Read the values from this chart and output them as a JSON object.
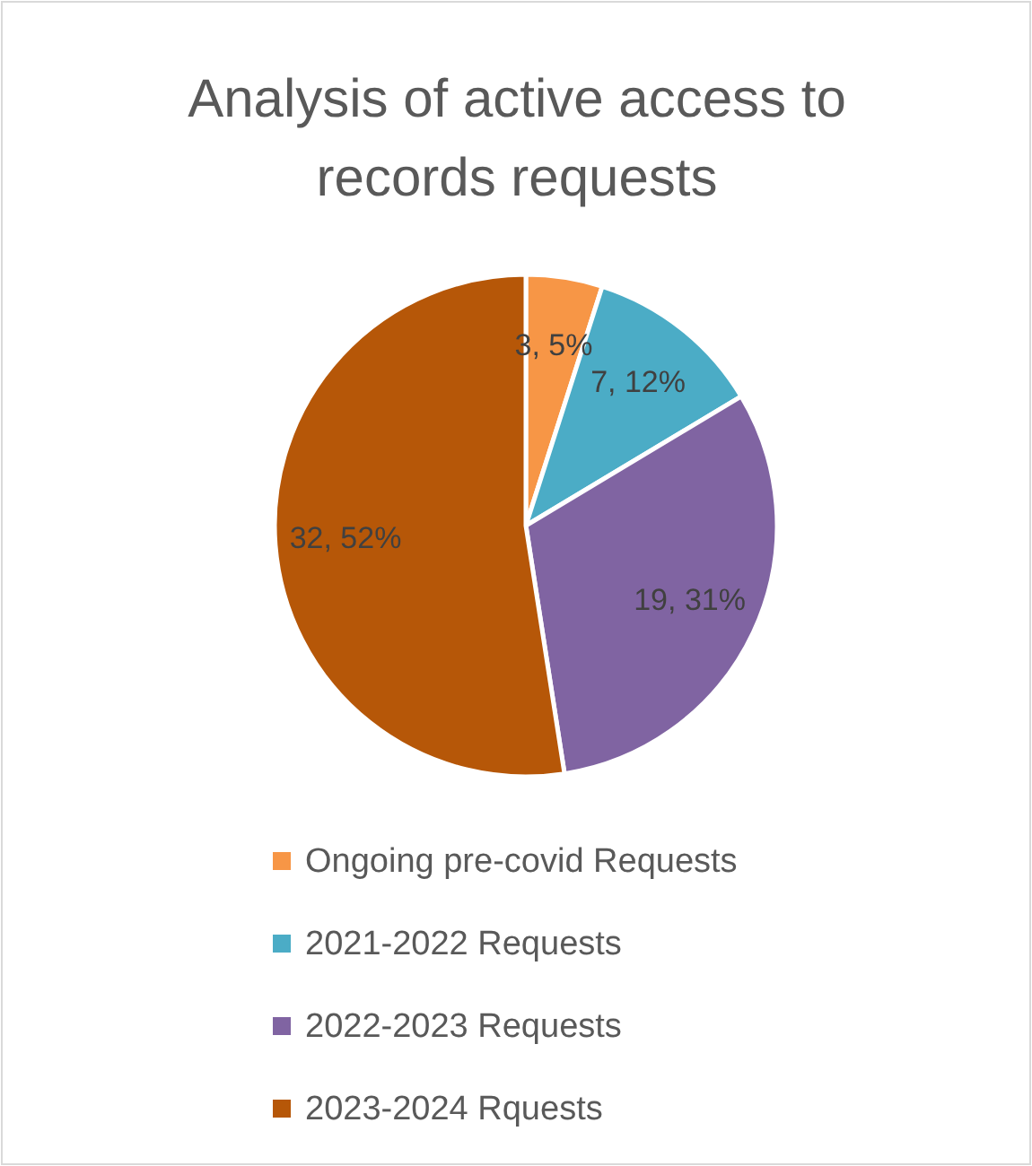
{
  "chart_data": {
    "type": "pie",
    "title": "Analysis of active access to records requests",
    "categories": [
      "Ongoing pre-covid Requests",
      "2021-2022 Requests",
      "2022-2023 Requests",
      "2023-2024 Rquests"
    ],
    "values": [
      3,
      7,
      19,
      32
    ],
    "colors": [
      "#f79646",
      "#4bacc6",
      "#8064a2",
      "#b65708"
    ],
    "value_labels": [
      "3, 5%",
      "7, 12%",
      "19, 31%",
      "32, 52%"
    ],
    "legend": "bottom"
  }
}
